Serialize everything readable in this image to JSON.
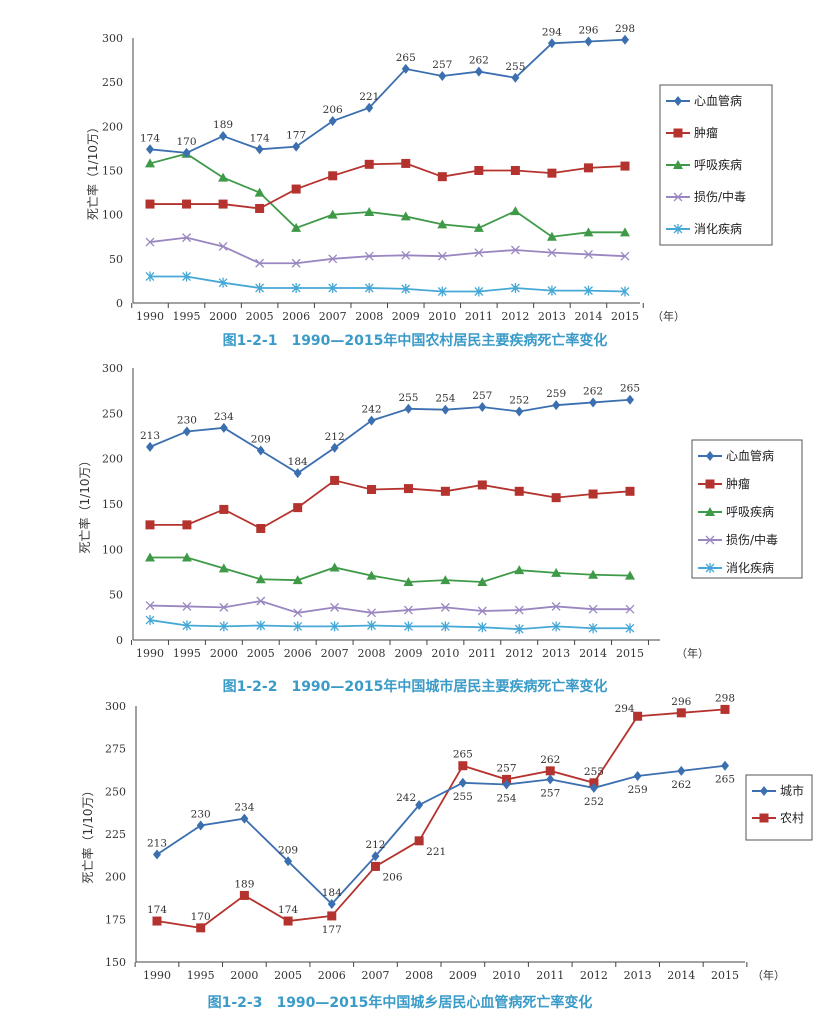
{
  "colors": {
    "cardio": "#3b6fb0",
    "tumor": "#b5332e",
    "resp": "#3f9a48",
    "injury": "#9a86c0",
    "digest": "#45a8d6",
    "caption": "#3a9bc8"
  },
  "chart_data": [
    {
      "type": "line",
      "title": "图1-2-1　1990—2015年中国农村居民主要疾病死亡率变化",
      "ylabel": "死亡率（1/10万）",
      "xunit": "（年）",
      "ylim": [
        0,
        300
      ],
      "yticks": [
        0,
        50,
        100,
        150,
        200,
        250,
        300
      ],
      "categories": [
        "1990",
        "1995",
        "2000",
        "2005",
        "2006",
        "2007",
        "2008",
        "2009",
        "2010",
        "2011",
        "2012",
        "2013",
        "2014",
        "2015"
      ],
      "legend": "right",
      "series": [
        {
          "name": "心血管病",
          "key": "cardio",
          "marker": "diamond",
          "values": [
            174,
            170,
            189,
            174,
            177,
            206,
            221,
            265,
            257,
            262,
            255,
            294,
            296,
            298
          ],
          "labels": true
        },
        {
          "name": "肿瘤",
          "key": "tumor",
          "marker": "square",
          "values": [
            112,
            112,
            112,
            107,
            129,
            144,
            157,
            158,
            143,
            150,
            150,
            147,
            153,
            155
          ]
        },
        {
          "name": "呼吸疾病",
          "key": "resp",
          "marker": "triangle",
          "values": [
            158,
            169,
            142,
            125,
            85,
            100,
            103,
            98,
            89,
            85,
            104,
            75,
            80,
            80
          ]
        },
        {
          "name": "损伤/中毒",
          "key": "injury",
          "marker": "x",
          "values": [
            69,
            74,
            64,
            45,
            45,
            50,
            53,
            54,
            53,
            57,
            60,
            57,
            55,
            53
          ]
        },
        {
          "name": "消化疾病",
          "key": "digest",
          "marker": "asterisk",
          "values": [
            30,
            30,
            23,
            17,
            17,
            17,
            17,
            16,
            13,
            13,
            17,
            14,
            14,
            13
          ]
        }
      ]
    },
    {
      "type": "line",
      "title": "图1-2-2　1990—2015年中国城市居民主要疾病死亡率变化",
      "ylabel": "死亡率（1/10万）",
      "xunit": "（年）",
      "ylim": [
        0,
        300
      ],
      "yticks": [
        0,
        50,
        100,
        150,
        200,
        250,
        300
      ],
      "categories": [
        "1990",
        "1995",
        "2000",
        "2005",
        "2006",
        "2007",
        "2008",
        "2009",
        "2010",
        "2011",
        "2012",
        "2013",
        "2014",
        "2015"
      ],
      "legend": "right",
      "series": [
        {
          "name": "心血管病",
          "key": "cardio",
          "marker": "diamond",
          "values": [
            213,
            230,
            234,
            209,
            184,
            212,
            242,
            255,
            254,
            257,
            252,
            259,
            262,
            265
          ],
          "labels": true
        },
        {
          "name": "肿瘤",
          "key": "tumor",
          "marker": "square",
          "values": [
            127,
            127,
            144,
            123,
            146,
            176,
            166,
            167,
            164,
            171,
            164,
            157,
            161,
            164
          ]
        },
        {
          "name": "呼吸疾病",
          "key": "resp",
          "marker": "triangle",
          "values": [
            91,
            91,
            79,
            67,
            66,
            80,
            71,
            64,
            66,
            64,
            77,
            74,
            72,
            71
          ]
        },
        {
          "name": "损伤/中毒",
          "key": "injury",
          "marker": "x",
          "values": [
            38,
            37,
            36,
            43,
            30,
            36,
            30,
            33,
            36,
            32,
            33,
            37,
            34,
            34
          ]
        },
        {
          "name": "消化疾病",
          "key": "digest",
          "marker": "asterisk",
          "values": [
            22,
            16,
            15,
            16,
            15,
            15,
            16,
            15,
            15,
            14,
            12,
            15,
            13,
            13
          ]
        }
      ]
    },
    {
      "type": "line",
      "title": "图1-2-3　1990—2015年中国城乡居民心血管病死亡率变化",
      "ylabel": "死亡率（1/10万）",
      "xunit": "（年）",
      "ylim": [
        150,
        300
      ],
      "yticks": [
        150,
        175,
        200,
        225,
        250,
        275,
        300
      ],
      "categories": [
        "1990",
        "1995",
        "2000",
        "2005",
        "2006",
        "2007",
        "2008",
        "2009",
        "2010",
        "2011",
        "2012",
        "2013",
        "2014",
        "2015"
      ],
      "legend": "right",
      "series": [
        {
          "name": "城市",
          "key": "cardio",
          "marker": "diamond",
          "values": [
            213,
            230,
            234,
            209,
            184,
            212,
            242,
            255,
            254,
            257,
            252,
            259,
            262,
            265
          ],
          "labels": true
        },
        {
          "name": "农村",
          "key": "tumor",
          "marker": "square",
          "values": [
            174,
            170,
            189,
            174,
            177,
            206,
            221,
            265,
            257,
            262,
            255,
            294,
            296,
            298
          ],
          "labels": true
        }
      ]
    }
  ]
}
